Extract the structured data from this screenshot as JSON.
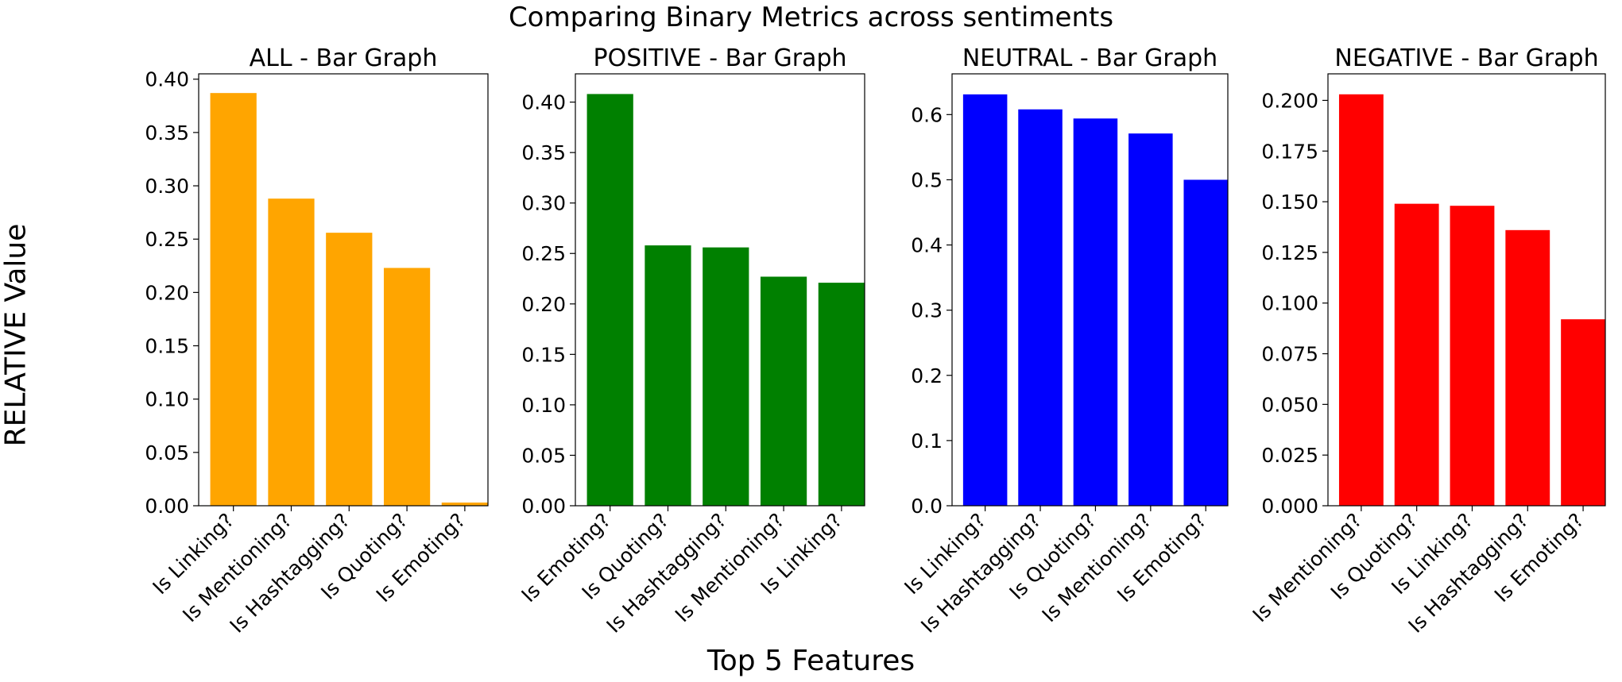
{
  "figure": {
    "title": "Comparing Binary Metrics across sentiments",
    "xlabel": "Top 5 Features",
    "ylabel": "RELATIVE Value"
  },
  "chart_data": [
    {
      "type": "bar",
      "title": "ALL - Bar Graph",
      "color": "#ffa500",
      "categories": [
        "Is Linking?",
        "Is Mentioning?",
        "Is Hashtagging?",
        "Is Quoting?",
        "Is Emoting?"
      ],
      "values": [
        0.387,
        0.288,
        0.256,
        0.223,
        0.003
      ],
      "ylim": [
        0,
        0.405
      ],
      "yticks": [
        "0.00",
        "0.05",
        "0.10",
        "0.15",
        "0.20",
        "0.25",
        "0.30",
        "0.35",
        "0.40"
      ]
    },
    {
      "type": "bar",
      "title": "POSITIVE - Bar Graph",
      "color": "#008000",
      "categories": [
        "Is Emoting?",
        "Is Quoting?",
        "Is Hashtagging?",
        "Is Mentioning?",
        "Is Linking?"
      ],
      "values": [
        0.408,
        0.258,
        0.256,
        0.227,
        0.221
      ],
      "ylim": [
        0,
        0.428
      ],
      "yticks": [
        "0.00",
        "0.05",
        "0.10",
        "0.15",
        "0.20",
        "0.25",
        "0.30",
        "0.35",
        "0.40"
      ]
    },
    {
      "type": "bar",
      "title": "NEUTRAL - Bar Graph",
      "color": "#0000ff",
      "categories": [
        "Is Linking?",
        "Is Hashtagging?",
        "Is Quoting?",
        "Is Mentioning?",
        "Is Emoting?"
      ],
      "values": [
        0.631,
        0.608,
        0.594,
        0.571,
        0.5
      ],
      "ylim": [
        0,
        0.6625
      ],
      "yticks": [
        "0.0",
        "0.1",
        "0.2",
        "0.3",
        "0.4",
        "0.5",
        "0.6"
      ]
    },
    {
      "type": "bar",
      "title": "NEGATIVE - Bar Graph",
      "color": "#ff0000",
      "categories": [
        "Is Mentioning?",
        "Is Quoting?",
        "Is Linking?",
        "Is Hashtagging?",
        "Is Emoting?"
      ],
      "values": [
        0.203,
        0.149,
        0.148,
        0.136,
        0.092
      ],
      "ylim": [
        0,
        0.2131
      ],
      "yticks": [
        "0.000",
        "0.025",
        "0.050",
        "0.075",
        "0.100",
        "0.125",
        "0.150",
        "0.175",
        "0.200"
      ]
    }
  ]
}
